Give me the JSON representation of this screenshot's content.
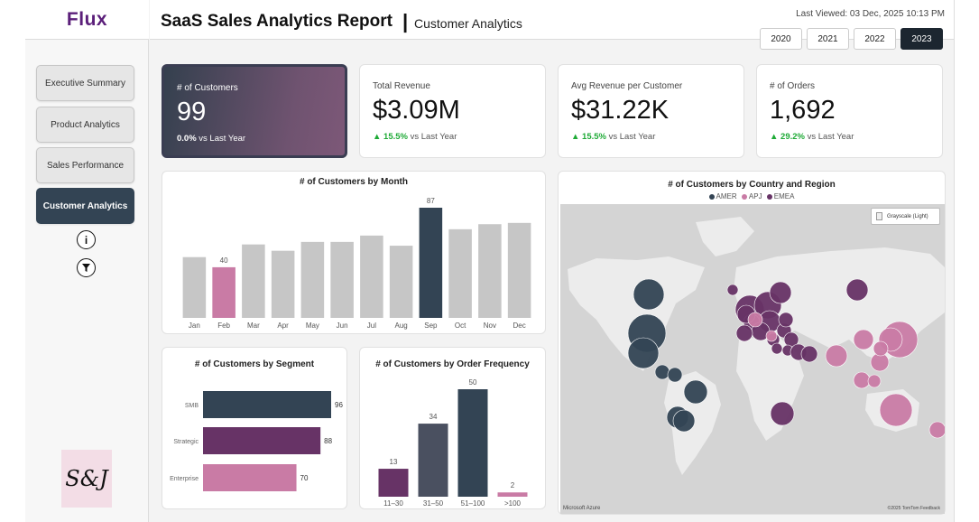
{
  "app": {
    "logo": "Flux",
    "brand_mark": "S&J"
  },
  "header": {
    "title": "SaaS Sales Analytics Report",
    "separator": "|",
    "subtitle": "Customer Analytics",
    "last_viewed": "Last Viewed: 03 Dec, 2025 10:13 PM",
    "years": [
      "2020",
      "2021",
      "2022",
      "2023"
    ],
    "active_year": "2023"
  },
  "sidebar": {
    "items": [
      {
        "label": "Executive Summary"
      },
      {
        "label": "Product Analytics"
      },
      {
        "label": "Sales Performance"
      },
      {
        "label": "Customer Analytics",
        "active": true
      }
    ],
    "icons": [
      "info-icon",
      "filter-icon"
    ]
  },
  "kpis": [
    {
      "label": "# of Customers",
      "value": "99",
      "delta": "0.0%",
      "suffix": "vs Last Year",
      "arrow": ""
    },
    {
      "label": "Total Revenue",
      "value": "$3.09M",
      "delta": "15.5%",
      "suffix": "vs Last Year",
      "arrow": "▲"
    },
    {
      "label": "Avg Revenue per Customer",
      "value": "$31.22K",
      "delta": "15.5%",
      "suffix": "vs Last Year",
      "arrow": "▲"
    },
    {
      "label": "# of Orders",
      "value": "1,692",
      "delta": "29.2%",
      "suffix": "vs Last Year",
      "arrow": "▲"
    }
  ],
  "colors": {
    "navy": "#334454",
    "purple": "#673366",
    "pink": "#c97ba5",
    "gray_bar": "#c6c6c6",
    "slate": "#4a5060",
    "positive": "#1eaa36"
  },
  "chart_data": [
    {
      "type": "bar",
      "title": "# of Customers by Month",
      "categories": [
        "Jan",
        "Feb",
        "Mar",
        "Apr",
        "May",
        "Jun",
        "Jul",
        "Aug",
        "Sep",
        "Oct",
        "Nov",
        "Dec"
      ],
      "values": [
        48,
        40,
        58,
        53,
        60,
        60,
        65,
        57,
        87,
        70,
        74,
        75
      ],
      "data_labels": {
        "Feb": "40",
        "Sep": "87"
      },
      "highlight": {
        "Feb": "#c97ba5",
        "Sep": "#334454"
      },
      "ylim": [
        0,
        87
      ]
    },
    {
      "type": "bar",
      "orientation": "horizontal",
      "title": "# of Customers by Segment",
      "categories": [
        "SMB",
        "Strategic",
        "Enterprise"
      ],
      "values": [
        96,
        88,
        70
      ],
      "bar_colors": [
        "#334454",
        "#673366",
        "#c97ba5"
      ],
      "xlim": [
        0,
        96
      ]
    },
    {
      "type": "bar",
      "title": "# of Customers by Order Frequency",
      "categories": [
        "11–30",
        "31–50",
        "51–100",
        ">100"
      ],
      "values": [
        13,
        34,
        50,
        2
      ],
      "bar_colors": [
        "#673366",
        "#4a5060",
        "#334454",
        "#c97ba5"
      ],
      "ylim": [
        0,
        50
      ]
    },
    {
      "type": "scatter",
      "subtype": "bubble-map",
      "title": "# of Customers by Country and Region",
      "legend": [
        "AMER",
        "APJ",
        "EMEA"
      ],
      "legend_colors": [
        "#334454",
        "#c97ba5",
        "#673366"
      ],
      "map_style_button": "Grayscale (Light)",
      "credits": {
        "left": "Microsoft Azure",
        "right": "©2025 TomTom Feedback"
      }
    }
  ]
}
